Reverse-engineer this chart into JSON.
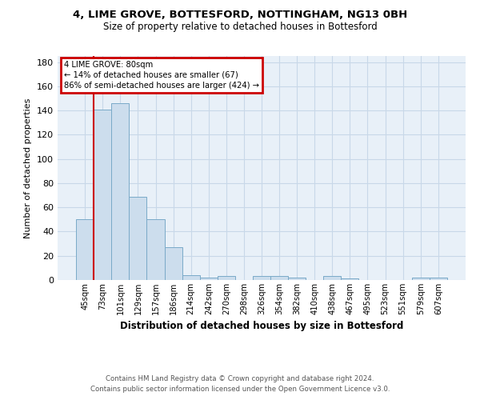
{
  "title": "4, LIME GROVE, BOTTESFORD, NOTTINGHAM, NG13 0BH",
  "subtitle": "Size of property relative to detached houses in Bottesford",
  "xlabel": "Distribution of detached houses by size in Bottesford",
  "ylabel": "Number of detached properties",
  "footnote1": "Contains HM Land Registry data © Crown copyright and database right 2024.",
  "footnote2": "Contains public sector information licensed under the Open Government Licence v3.0.",
  "categories": [
    "45sqm",
    "73sqm",
    "101sqm",
    "129sqm",
    "157sqm",
    "186sqm",
    "214sqm",
    "242sqm",
    "270sqm",
    "298sqm",
    "326sqm",
    "354sqm",
    "382sqm",
    "410sqm",
    "438sqm",
    "467sqm",
    "495sqm",
    "523sqm",
    "551sqm",
    "579sqm",
    "607sqm"
  ],
  "values": [
    50,
    141,
    146,
    69,
    50,
    27,
    4,
    2,
    3,
    0,
    3,
    3,
    2,
    0,
    3,
    1,
    0,
    0,
    0,
    2,
    2
  ],
  "bar_color": "#ccdded",
  "bar_edge_color": "#7aaac8",
  "property_label": "4 LIME GROVE: 80sqm",
  "annotation_line1": "← 14% of detached houses are smaller (67)",
  "annotation_line2": "86% of semi-detached houses are larger (424) →",
  "annotation_box_color": "#cc0000",
  "vline_color": "#cc0000",
  "vline_x": 0.5,
  "ylim": [
    0,
    185
  ],
  "yticks": [
    0,
    20,
    40,
    60,
    80,
    100,
    120,
    140,
    160,
    180
  ],
  "grid_color": "#c8d8e8",
  "bg_color": "#e8f0f8"
}
